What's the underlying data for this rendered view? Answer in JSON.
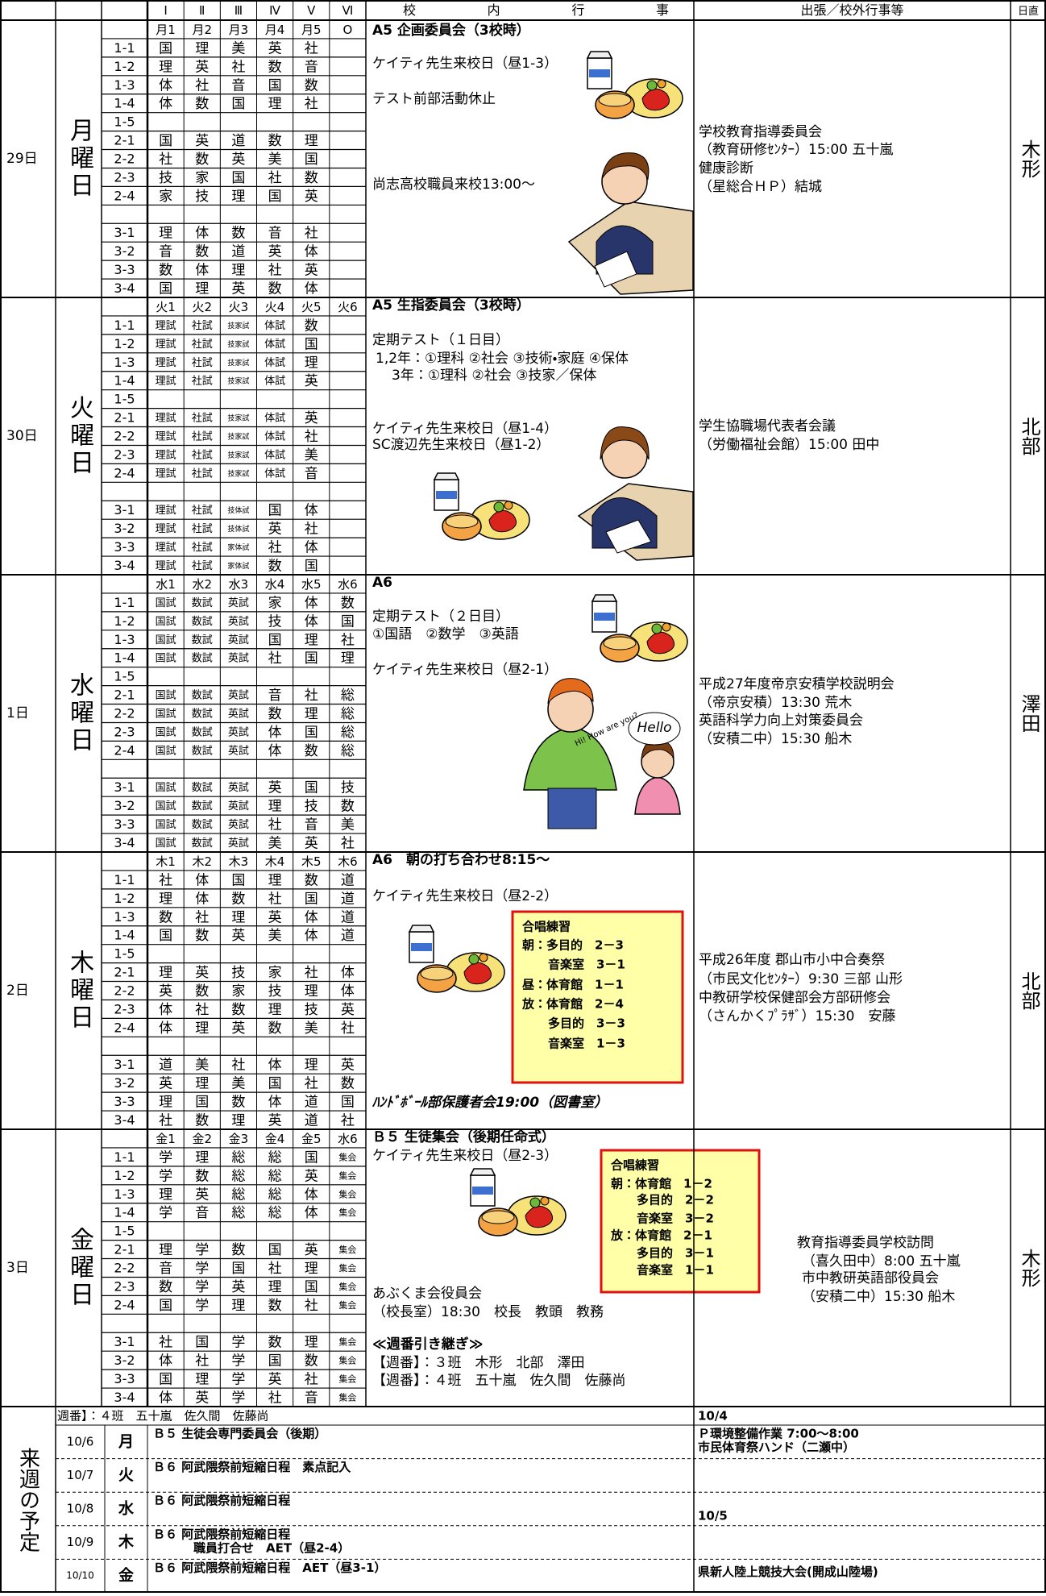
{
  "header": {
    "periods": [
      "Ⅰ",
      "Ⅱ",
      "Ⅲ",
      "Ⅳ",
      "Ⅴ",
      "Ⅵ"
    ],
    "school_events": "校内行事",
    "outside_events": "出張／校外行事等",
    "duty": "日直"
  },
  "days": [
    {
      "date": "29日",
      "weekday": "月曜日",
      "periods": [
        "月1",
        "月2",
        "月3",
        "月4",
        "月5",
        "O"
      ],
      "classes": [
        {
          "name": "1-1",
          "cells": [
            "国",
            "理",
            "美",
            "英",
            "社"
          ]
        },
        {
          "name": "1-2",
          "cells": [
            "理",
            "英",
            "社",
            "数",
            "音"
          ]
        },
        {
          "name": "1-3",
          "cells": [
            "体",
            "社",
            "音",
            "国",
            "数"
          ]
        },
        {
          "name": "1-4",
          "cells": [
            "体",
            "数",
            "国",
            "理",
            "社"
          ]
        },
        {
          "name": "1-5",
          "cells": []
        },
        {
          "name": "2-1",
          "cells": [
            "国",
            "英",
            "道",
            "数",
            "理"
          ]
        },
        {
          "name": "2-2",
          "cells": [
            "社",
            "数",
            "英",
            "美",
            "国"
          ]
        },
        {
          "name": "2-3",
          "cells": [
            "技",
            "家",
            "国",
            "社",
            "数"
          ]
        },
        {
          "name": "2-4",
          "cells": [
            "家",
            "技",
            "理",
            "国",
            "英"
          ]
        },
        {
          "name": "3-1",
          "cells": [
            "理",
            "体",
            "数",
            "音",
            "社"
          ]
        },
        {
          "name": "3-2",
          "cells": [
            "音",
            "数",
            "道",
            "英",
            "体"
          ]
        },
        {
          "name": "3-3",
          "cells": [
            "数",
            "体",
            "理",
            "社",
            "英"
          ]
        },
        {
          "name": "3-4",
          "cells": [
            "国",
            "理",
            "英",
            "数",
            "体"
          ]
        }
      ],
      "events": [
        "A5 企画委員会（3校時）",
        "ケイティ先生来校日（昼1-3）",
        "テスト前部活動休止",
        "尚志高校職員来校13:00～"
      ],
      "outside": [
        "学校教育指導委員会",
        "（教育研修ｾﾝﾀｰ）15:00 五十嵐",
        "健康診断",
        "（星総合ＨＰ）結城"
      ],
      "duty": "木形"
    },
    {
      "date": "30日",
      "weekday": "火曜日",
      "periods": [
        "火1",
        "火2",
        "火3",
        "火4",
        "火5",
        "火6"
      ],
      "classes": [
        {
          "name": "1-1",
          "cells": [
            "理試",
            "社試",
            "技家試",
            "体試",
            "数"
          ]
        },
        {
          "name": "1-2",
          "cells": [
            "理試",
            "社試",
            "技家試",
            "体試",
            "国"
          ]
        },
        {
          "name": "1-3",
          "cells": [
            "理試",
            "社試",
            "技家試",
            "体試",
            "理"
          ]
        },
        {
          "name": "1-4",
          "cells": [
            "理試",
            "社試",
            "技家試",
            "体試",
            "英"
          ]
        },
        {
          "name": "1-5",
          "cells": []
        },
        {
          "name": "2-1",
          "cells": [
            "理試",
            "社試",
            "技家試",
            "体試",
            "英"
          ]
        },
        {
          "name": "2-2",
          "cells": [
            "理試",
            "社試",
            "技家試",
            "体試",
            "社"
          ]
        },
        {
          "name": "2-3",
          "cells": [
            "理試",
            "社試",
            "技家試",
            "体試",
            "美"
          ]
        },
        {
          "name": "2-4",
          "cells": [
            "理試",
            "社試",
            "技家試",
            "体試",
            "音"
          ]
        },
        {
          "name": "3-1",
          "cells": [
            "理試",
            "社試",
            "技体試",
            "国",
            "体"
          ]
        },
        {
          "name": "3-2",
          "cells": [
            "理試",
            "社試",
            "技体試",
            "英",
            "社"
          ]
        },
        {
          "name": "3-3",
          "cells": [
            "理試",
            "社試",
            "家体試",
            "社",
            "体"
          ]
        },
        {
          "name": "3-4",
          "cells": [
            "理試",
            "社試",
            "家体試",
            "数",
            "国"
          ]
        }
      ],
      "events": [
        "A5 生指委員会（3校時）",
        "定期テスト（１日目）",
        "1,2年：①理科 ②社会 ③技術・家庭 ④保体",
        "3年：①理科 ②社会 ③技家／保体",
        "ケイティ先生来校日（昼1-4）",
        "SC渡辺先生来校日（昼1-2）"
      ],
      "outside": [
        "学生協職場代表者会議",
        "（労働福祉会館）15:00 田中"
      ],
      "duty": "北部"
    },
    {
      "date": "1日",
      "weekday": "水曜日",
      "periods": [
        "水1",
        "水2",
        "水3",
        "水4",
        "水5",
        "水6"
      ],
      "classes": [
        {
          "name": "1-1",
          "cells": [
            "国試",
            "数試",
            "英試",
            "家",
            "体",
            "数"
          ]
        },
        {
          "name": "1-2",
          "cells": [
            "国試",
            "数試",
            "英試",
            "技",
            "体",
            "国"
          ]
        },
        {
          "name": "1-3",
          "cells": [
            "国試",
            "数試",
            "英試",
            "国",
            "理",
            "社"
          ]
        },
        {
          "name": "1-4",
          "cells": [
            "国試",
            "数試",
            "英試",
            "社",
            "国",
            "理"
          ]
        },
        {
          "name": "1-5",
          "cells": []
        },
        {
          "name": "2-1",
          "cells": [
            "国試",
            "数試",
            "英試",
            "音",
            "社",
            "総"
          ]
        },
        {
          "name": "2-2",
          "cells": [
            "国試",
            "数試",
            "英試",
            "数",
            "理",
            "総"
          ]
        },
        {
          "name": "2-3",
          "cells": [
            "国試",
            "数試",
            "英試",
            "体",
            "国",
            "総"
          ]
        },
        {
          "name": "2-4",
          "cells": [
            "国試",
            "数試",
            "英試",
            "体",
            "数",
            "総"
          ]
        },
        {
          "name": "3-1",
          "cells": [
            "国試",
            "数試",
            "英試",
            "英",
            "国",
            "技"
          ]
        },
        {
          "name": "3-2",
          "cells": [
            "国試",
            "数試",
            "英試",
            "理",
            "技",
            "数"
          ]
        },
        {
          "name": "3-3",
          "cells": [
            "国試",
            "数試",
            "英試",
            "社",
            "音",
            "美"
          ]
        },
        {
          "name": "3-4",
          "cells": [
            "国試",
            "数試",
            "英試",
            "美",
            "英",
            "社"
          ]
        }
      ],
      "events": [
        "A6",
        "定期テスト（２日目）",
        "①国語　②数学　③英語",
        "ケイティ先生来校日（昼2-1）"
      ],
      "speech": [
        "Hi! How are you?",
        "Hello"
      ],
      "outside": [
        "平成27年度帝京安積学校説明会",
        "（帝京安積）13:30 荒木",
        "英語科学力向上対策委員会",
        "（安積二中）15:30 船木"
      ],
      "duty": "澤田"
    },
    {
      "date": "2日",
      "weekday": "木曜日",
      "periods": [
        "木1",
        "木2",
        "木3",
        "木4",
        "木5",
        "木6"
      ],
      "classes": [
        {
          "name": "1-1",
          "cells": [
            "社",
            "体",
            "国",
            "理",
            "数",
            "道"
          ]
        },
        {
          "name": "1-2",
          "cells": [
            "理",
            "体",
            "数",
            "社",
            "国",
            "道"
          ]
        },
        {
          "name": "1-3",
          "cells": [
            "数",
            "社",
            "理",
            "英",
            "体",
            "道"
          ]
        },
        {
          "name": "1-4",
          "cells": [
            "国",
            "数",
            "英",
            "美",
            "体",
            "道"
          ]
        },
        {
          "name": "1-5",
          "cells": []
        },
        {
          "name": "2-1",
          "cells": [
            "理",
            "英",
            "技",
            "家",
            "社",
            "体"
          ]
        },
        {
          "name": "2-2",
          "cells": [
            "英",
            "数",
            "家",
            "技",
            "理",
            "体"
          ]
        },
        {
          "name": "2-3",
          "cells": [
            "体",
            "社",
            "数",
            "理",
            "技",
            "英"
          ]
        },
        {
          "name": "2-4",
          "cells": [
            "体",
            "理",
            "英",
            "数",
            "美",
            "社"
          ]
        },
        {
          "name": "3-1",
          "cells": [
            "道",
            "美",
            "社",
            "体",
            "理",
            "英"
          ]
        },
        {
          "name": "3-2",
          "cells": [
            "英",
            "理",
            "美",
            "国",
            "社",
            "数"
          ]
        },
        {
          "name": "3-3",
          "cells": [
            "理",
            "国",
            "数",
            "体",
            "道",
            "国"
          ]
        },
        {
          "name": "3-4",
          "cells": [
            "社",
            "数",
            "理",
            "英",
            "道",
            "社"
          ]
        }
      ],
      "events": [
        "A6　朝の打ち合わせ8:15～",
        "ケイティ先生来校日（昼2-2）",
        "ﾊﾝﾄﾞﾎﾞｰﾙ部保護者会19:00（図書室）"
      ],
      "choir": {
        "title": "合唱練習",
        "lines": [
          "朝：多目的　2－3",
          "音楽室　3－1",
          "昼：体育館　1－1",
          "放：体育館　2－4",
          "多目的　3－3",
          "音楽室　1－3"
        ]
      },
      "outside": [
        "平成26年度 郡山市小中合奏祭",
        "（市民文化ｾﾝﾀｰ）9:30 三部 山形",
        "中教研学校保健部会方部研修会",
        "（さんかくﾌﾟﾗｻﾞ）15:30　安藤"
      ],
      "duty": "北部"
    },
    {
      "date": "3日",
      "weekday": "金曜日",
      "periods": [
        "金1",
        "金2",
        "金3",
        "金4",
        "金5",
        "水6"
      ],
      "classes": [
        {
          "name": "1-1",
          "cells": [
            "学",
            "理",
            "総",
            "総",
            "国",
            "集会"
          ]
        },
        {
          "name": "1-2",
          "cells": [
            "学",
            "数",
            "総",
            "総",
            "英",
            "集会"
          ]
        },
        {
          "name": "1-3",
          "cells": [
            "理",
            "英",
            "総",
            "総",
            "体",
            "集会"
          ]
        },
        {
          "name": "1-4",
          "cells": [
            "学",
            "音",
            "総",
            "総",
            "体",
            "集会"
          ]
        },
        {
          "name": "1-5",
          "cells": []
        },
        {
          "name": "2-1",
          "cells": [
            "理",
            "学",
            "数",
            "国",
            "英",
            "集会"
          ]
        },
        {
          "name": "2-2",
          "cells": [
            "音",
            "学",
            "国",
            "社",
            "理",
            "集会"
          ]
        },
        {
          "name": "2-3",
          "cells": [
            "数",
            "学",
            "英",
            "理",
            "国",
            "集会"
          ]
        },
        {
          "name": "2-4",
          "cells": [
            "国",
            "学",
            "理",
            "数",
            "社",
            "集会"
          ]
        },
        {
          "name": "3-1",
          "cells": [
            "社",
            "国",
            "学",
            "数",
            "理",
            "集会"
          ]
        },
        {
          "name": "3-2",
          "cells": [
            "体",
            "社",
            "学",
            "国",
            "数",
            "集会"
          ]
        },
        {
          "name": "3-3",
          "cells": [
            "国",
            "理",
            "学",
            "英",
            "社",
            "集会"
          ]
        },
        {
          "name": "3-4",
          "cells": [
            "体",
            "英",
            "学",
            "社",
            "音",
            "集会"
          ]
        }
      ],
      "events": [
        "Ｂ５ 生徒集会（後期任命式）",
        "ケイティ先生来校日（昼2-3）",
        "あぶくま会役員会",
        "（校長室）18:30　校長　教頭　教務",
        "≪週番引き継ぎ≫",
        "【週番】：３班　木形　北部　澤田",
        "【週番】：４班　五十嵐　佐久間　佐藤尚"
      ],
      "choir": {
        "title": "合唱練習",
        "lines": [
          "朝：体育館　1－2",
          "多目的　2－2",
          "音楽室　3－2",
          "放：体育館　2－1",
          "多目的　3－1",
          "音楽室　1－1"
        ]
      },
      "outside": [
        "教育指導委員学校訪問",
        "（喜久田中）8:00 五十嵐",
        "市中教研英語部役員会",
        "（安積二中）15:30 船木"
      ],
      "duty": "木形"
    }
  ],
  "next_week": {
    "title": "来週の予定",
    "duty_note": "週番】：４班　五十嵐　佐久間　佐藤尚",
    "note_date": "10/4",
    "rows": [
      {
        "date": "10/6",
        "day": "月",
        "events": [
          "Ｂ５ 生徒会専門委員会（後期）"
        ],
        "notes": [
          "Ｐ環境整備作業 7:00～8:00",
          "市民体育祭ハンド（二瀬中）"
        ]
      },
      {
        "date": "10/7",
        "day": "火",
        "events": [
          "Ｂ６ 阿武隈祭前短縮日程　素点記入"
        ],
        "notes": []
      },
      {
        "date": "10/8",
        "day": "水",
        "events": [
          "Ｂ６ 阿武隈祭前短縮日程"
        ],
        "notes": [
          "10/5"
        ]
      },
      {
        "date": "10/9",
        "day": "木",
        "events": [
          "Ｂ６ 阿武隈祭前短縮日程",
          "職員打合せ　AET（昼2-4）"
        ],
        "notes": []
      },
      {
        "date": "10/10",
        "day": "金",
        "events": [
          "Ｂ６ 阿武隈祭前短縮日程　AET（昼3-1）"
        ],
        "notes": [
          "県新人陸上競技大会(開成山陸場)"
        ]
      }
    ]
  }
}
